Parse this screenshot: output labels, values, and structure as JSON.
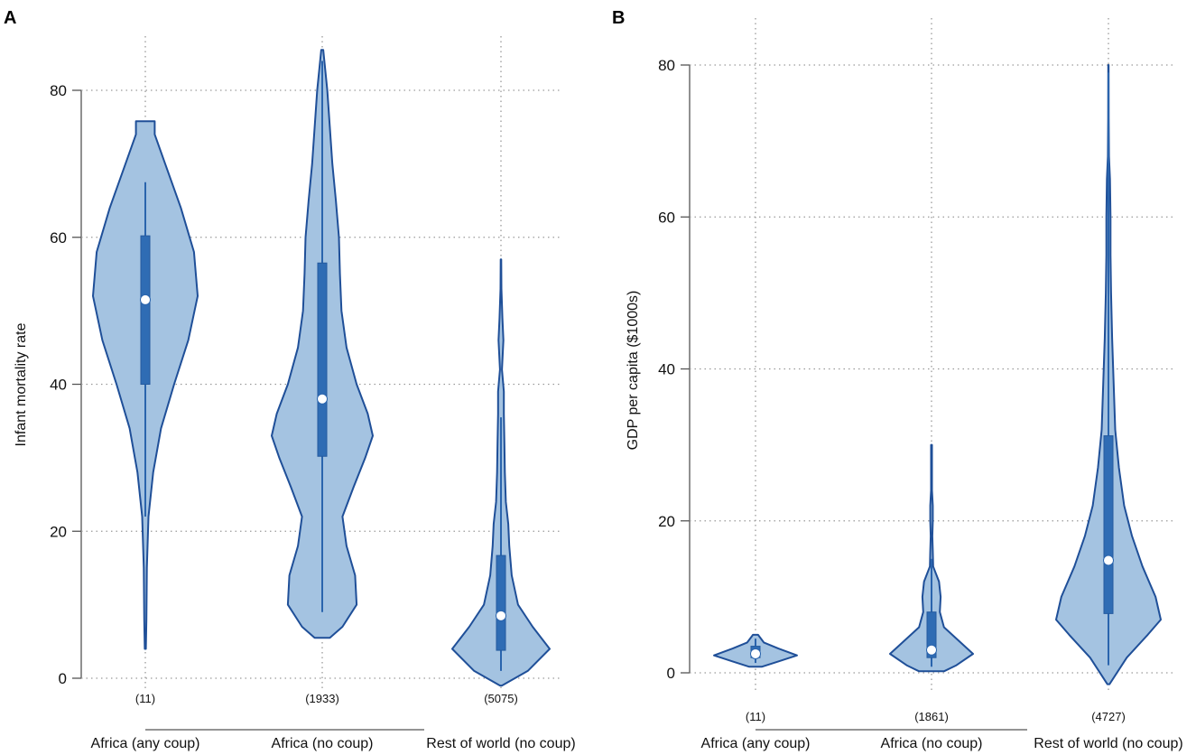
{
  "chart_data": [
    {
      "type": "violin",
      "panel_label": "A",
      "ylabel": "Infant mortality rate",
      "ylim": [
        0,
        80
      ],
      "yticks": [
        0,
        20,
        40,
        60,
        80
      ],
      "grid": true,
      "categories": [
        "Africa (any coup)",
        "Africa (no coup)",
        "Rest of world (no coup)"
      ],
      "counts": [
        "(11)",
        "(1933)",
        "(5075)"
      ],
      "series": [
        {
          "name": "Africa (any coup)",
          "median": 51.5,
          "q1": 40,
          "q3": 60.2,
          "whisker_low": 22,
          "whisker_high": 67.5,
          "density": [
            [
              4,
              0.01
            ],
            [
              8,
              0.02
            ],
            [
              15,
              0.03
            ],
            [
              22,
              0.06
            ],
            [
              28,
              0.15
            ],
            [
              34,
              0.3
            ],
            [
              40,
              0.55
            ],
            [
              46,
              0.82
            ],
            [
              52,
              1.0
            ],
            [
              58,
              0.93
            ],
            [
              64,
              0.68
            ],
            [
              70,
              0.38
            ],
            [
              74,
              0.18
            ],
            [
              75.8,
              0.18
            ]
          ]
        },
        {
          "name": "Africa (no coup)",
          "median": 38,
          "q1": 30.2,
          "q3": 56.5,
          "whisker_low": 9,
          "whisker_high": 84,
          "density": [
            [
              5.5,
              0.15
            ],
            [
              7,
              0.4
            ],
            [
              10,
              0.68
            ],
            [
              14,
              0.65
            ],
            [
              18,
              0.48
            ],
            [
              22,
              0.4
            ],
            [
              26,
              0.62
            ],
            [
              30,
              0.85
            ],
            [
              33,
              1.0
            ],
            [
              36,
              0.9
            ],
            [
              40,
              0.68
            ],
            [
              45,
              0.48
            ],
            [
              50,
              0.38
            ],
            [
              55,
              0.35
            ],
            [
              60,
              0.33
            ],
            [
              65,
              0.27
            ],
            [
              70,
              0.2
            ],
            [
              75,
              0.15
            ],
            [
              80,
              0.1
            ],
            [
              85.5,
              0.02
            ]
          ]
        },
        {
          "name": "Rest of world (no coup)",
          "median": 8.5,
          "q1": 3.8,
          "q3": 16.7,
          "whisker_low": 1,
          "whisker_high": 35.5,
          "density": [
            [
              -1,
              0.02
            ],
            [
              1,
              0.55
            ],
            [
              4,
              1.0
            ],
            [
              7,
              0.65
            ],
            [
              10,
              0.35
            ],
            [
              14,
              0.22
            ],
            [
              18,
              0.17
            ],
            [
              21,
              0.15
            ],
            [
              24,
              0.1
            ],
            [
              28,
              0.08
            ],
            [
              32,
              0.07
            ],
            [
              36,
              0.06
            ],
            [
              39,
              0.06
            ],
            [
              42,
              0.02
            ],
            [
              46,
              0.05
            ],
            [
              49,
              0.03
            ],
            [
              53,
              0.01
            ],
            [
              57,
              0.005
            ]
          ]
        }
      ]
    },
    {
      "type": "violin",
      "panel_label": "B",
      "ylabel": "GDP per capita ($1000s)",
      "ylim": [
        0,
        80
      ],
      "yticks": [
        0,
        20,
        40,
        60,
        80
      ],
      "grid": true,
      "categories": [
        "Africa (any coup)",
        "Africa (no coup)",
        "Rest of world (no coup)"
      ],
      "counts": [
        "(11)",
        "(1861)",
        "(4727)"
      ],
      "series": [
        {
          "name": "Africa (any coup)",
          "median": 2.5,
          "q1": 2.0,
          "q3": 3.5,
          "whisker_low": 1.3,
          "whisker_high": 4.5,
          "density": [
            [
              0.8,
              0.15
            ],
            [
              1.5,
              0.55
            ],
            [
              2.3,
              1.0
            ],
            [
              3.2,
              0.55
            ],
            [
              4.0,
              0.2
            ],
            [
              5.0,
              0.06
            ]
          ]
        },
        {
          "name": "Africa (no coup)",
          "median": 3.0,
          "q1": 2.0,
          "q3": 8.0,
          "whisker_low": 0.8,
          "whisker_high": 15,
          "density": [
            [
              0.2,
              0.3
            ],
            [
              1,
              0.6
            ],
            [
              2.5,
              1.0
            ],
            [
              4,
              0.7
            ],
            [
              6,
              0.3
            ],
            [
              8,
              0.2
            ],
            [
              10,
              0.22
            ],
            [
              12,
              0.18
            ],
            [
              14,
              0.04
            ],
            [
              16,
              0.03
            ],
            [
              18,
              0.02
            ],
            [
              20,
              0.03
            ],
            [
              22,
              0.03
            ],
            [
              24,
              0.01
            ],
            [
              27,
              0.01
            ],
            [
              30,
              0.01
            ]
          ]
        },
        {
          "name": "Rest of world (no coup)",
          "median": 14.8,
          "q1": 7.8,
          "q3": 31.2,
          "whisker_low": 1,
          "whisker_high": 79,
          "density": [
            [
              -1.5,
              0.02
            ],
            [
              2,
              0.35
            ],
            [
              5,
              0.75
            ],
            [
              7,
              1.0
            ],
            [
              10,
              0.9
            ],
            [
              14,
              0.65
            ],
            [
              18,
              0.45
            ],
            [
              22,
              0.3
            ],
            [
              27,
              0.2
            ],
            [
              32,
              0.13
            ],
            [
              38,
              0.1
            ],
            [
              44,
              0.07
            ],
            [
              50,
              0.05
            ],
            [
              55,
              0.04
            ],
            [
              60,
              0.04
            ],
            [
              65,
              0.03
            ],
            [
              68,
              0.01
            ],
            [
              73,
              0.005
            ],
            [
              80,
              0.003
            ]
          ]
        }
      ]
    }
  ]
}
